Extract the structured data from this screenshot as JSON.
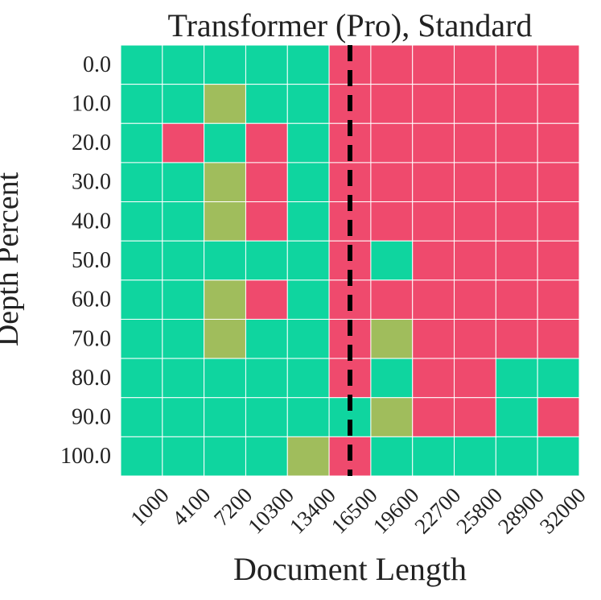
{
  "chart_data": {
    "type": "heatmap",
    "title": "Transformer (Pro), Standard",
    "xlabel": "Document Length",
    "ylabel": "Depth Percent",
    "x": [
      "1000",
      "4100",
      "7200",
      "10300",
      "13400",
      "16500",
      "19600",
      "22700",
      "25800",
      "28900",
      "32000"
    ],
    "y": [
      "0.0",
      "10.0",
      "20.0",
      "30.0",
      "40.0",
      "50.0",
      "60.0",
      "70.0",
      "80.0",
      "90.0",
      "100.0"
    ],
    "values": [
      [
        1,
        1,
        1,
        1,
        1,
        0,
        0,
        0,
        0,
        0,
        0
      ],
      [
        1,
        1,
        0.5,
        1,
        1,
        0,
        0,
        0,
        0,
        0,
        0
      ],
      [
        1,
        0,
        1,
        0,
        1,
        0,
        0,
        0,
        0,
        0,
        0
      ],
      [
        1,
        1,
        0.5,
        0,
        1,
        0,
        0,
        0,
        0,
        0,
        0
      ],
      [
        1,
        1,
        0.5,
        0,
        1,
        0,
        0,
        0,
        0,
        0,
        0
      ],
      [
        1,
        1,
        1,
        1,
        1,
        0,
        1,
        0,
        0,
        0,
        0
      ],
      [
        1,
        1,
        0.5,
        0,
        1,
        0,
        0,
        0,
        0,
        0,
        0
      ],
      [
        1,
        1,
        0.5,
        1,
        1,
        0,
        0.5,
        0,
        0,
        0,
        0
      ],
      [
        1,
        1,
        1,
        1,
        1,
        0,
        1,
        0,
        0,
        1,
        1
      ],
      [
        1,
        1,
        1,
        1,
        1,
        1,
        0.5,
        0,
        0,
        1,
        0
      ],
      [
        1,
        1,
        1,
        1,
        0.5,
        0,
        1,
        1,
        1,
        1,
        1
      ]
    ],
    "colors": {
      "high": "#0fd59f",
      "mid": "#a0bd5c",
      "low": "#ef4a6d",
      "grid": "#ffffff",
      "marker": "#000000"
    },
    "reference_line": {
      "x": 16500,
      "style": "dashed"
    },
    "grid": true,
    "legend": "none"
  }
}
